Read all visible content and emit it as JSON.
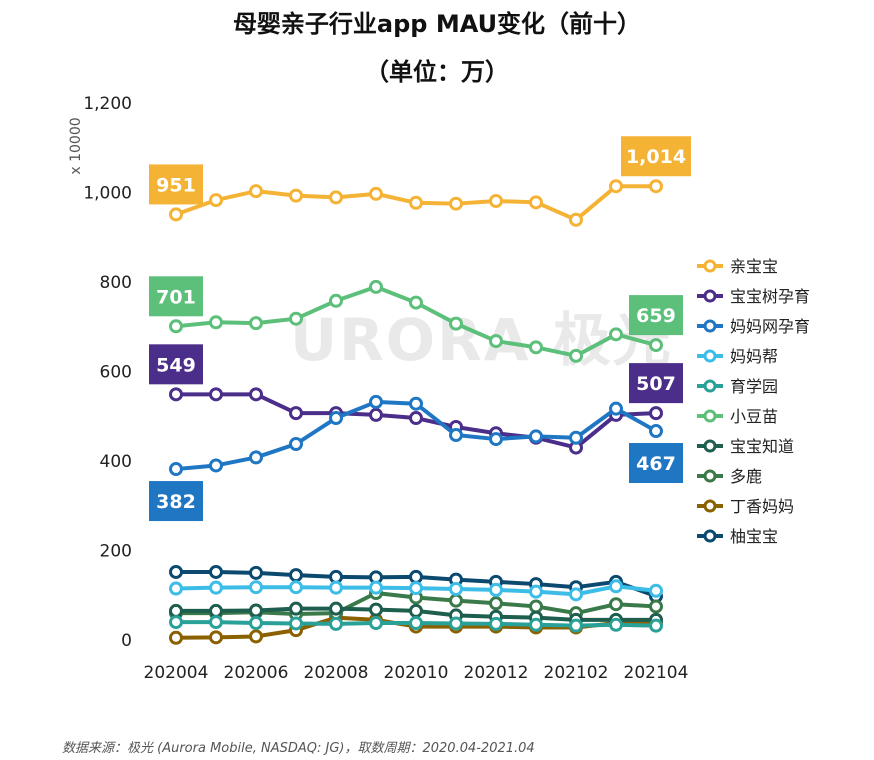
{
  "chart_data": {
    "type": "line",
    "title": "母婴亲子行业app MAU变化（前十）",
    "subtitle": "（单位：万）",
    "unit_label": "x 10000",
    "ylim": [
      0,
      1200
    ],
    "y_ticks": [
      "0",
      "200",
      "400",
      "600",
      "800",
      "1,000",
      "1,200"
    ],
    "y_tick_values": [
      0,
      200,
      400,
      600,
      800,
      1000,
      1200
    ],
    "x": [
      "202004",
      "202005",
      "202006",
      "202007",
      "202008",
      "202009",
      "202010",
      "202011",
      "202012",
      "202101",
      "202102",
      "202103",
      "202104"
    ],
    "x_tick_labels": [
      "202004",
      "202006",
      "202008",
      "202010",
      "202012",
      "202102",
      "202104"
    ],
    "legend_position": "right",
    "watermark": "URORA 极光",
    "source": "数据来源：极光 (Aurora Mobile, NASDAQ: JG)，取数周期：2020.04-2021.04",
    "series": [
      {
        "name": "亲宝宝",
        "color": "#F5B335",
        "values": [
          951,
          983,
          1003,
          993,
          989,
          997,
          977,
          975,
          981,
          978,
          939,
          1014,
          1014
        ],
        "labels": [
          {
            "index": 0,
            "text": "951",
            "pos": "above"
          },
          {
            "index": 12,
            "text": "1,014",
            "pos": "above"
          }
        ]
      },
      {
        "name": "宝宝树孕育",
        "color": "#4B2E8A",
        "values": [
          549,
          549,
          549,
          507,
          507,
          503,
          496,
          476,
          462,
          452,
          430,
          503,
          507
        ],
        "labels": [
          {
            "index": 0,
            "text": "549",
            "pos": "above"
          },
          {
            "index": 12,
            "text": "507",
            "pos": "above"
          }
        ]
      },
      {
        "name": "妈妈网孕育",
        "color": "#1F77C4",
        "values": [
          382,
          390,
          408,
          438,
          496,
          532,
          528,
          458,
          449,
          455,
          452,
          517,
          467
        ],
        "labels": [
          {
            "index": 0,
            "text": "382",
            "pos": "below"
          },
          {
            "index": 12,
            "text": "467",
            "pos": "below"
          }
        ]
      },
      {
        "name": "妈妈帮",
        "color": "#3CBDE8",
        "values": [
          115,
          117,
          118,
          118,
          117,
          117,
          116,
          114,
          112,
          108,
          102,
          120,
          110
        ],
        "labels": []
      },
      {
        "name": "育学园",
        "color": "#2AA198",
        "values": [
          40,
          40,
          38,
          37,
          36,
          38,
          38,
          37,
          36,
          34,
          32,
          34,
          32
        ],
        "labels": []
      },
      {
        "name": "小豆苗",
        "color": "#5CBF7A",
        "values": [
          701,
          710,
          708,
          718,
          758,
          789,
          754,
          707,
          668,
          654,
          635,
          683,
          659
        ],
        "labels": [
          {
            "index": 0,
            "text": "701",
            "pos": "above"
          },
          {
            "index": 12,
            "text": "659",
            "pos": "above"
          }
        ]
      },
      {
        "name": "宝宝知道",
        "color": "#1E5E4E",
        "values": [
          65,
          65,
          66,
          70,
          70,
          68,
          65,
          55,
          52,
          50,
          45,
          45,
          45
        ],
        "labels": []
      },
      {
        "name": "多鹿",
        "color": "#3A7A4A",
        "values": [
          60,
          60,
          62,
          58,
          60,
          105,
          95,
          88,
          82,
          75,
          60,
          80,
          75
        ],
        "labels": []
      },
      {
        "name": "丁香妈妈",
        "color": "#8B6100",
        "values": [
          5,
          6,
          8,
          22,
          50,
          45,
          30,
          30,
          30,
          28,
          28,
          38,
          38
        ],
        "labels": []
      },
      {
        "name": "柚宝宝",
        "color": "#0B4A6E",
        "values": [
          152,
          152,
          150,
          145,
          141,
          140,
          141,
          135,
          130,
          125,
          118,
          130,
          98
        ],
        "labels": []
      }
    ]
  }
}
